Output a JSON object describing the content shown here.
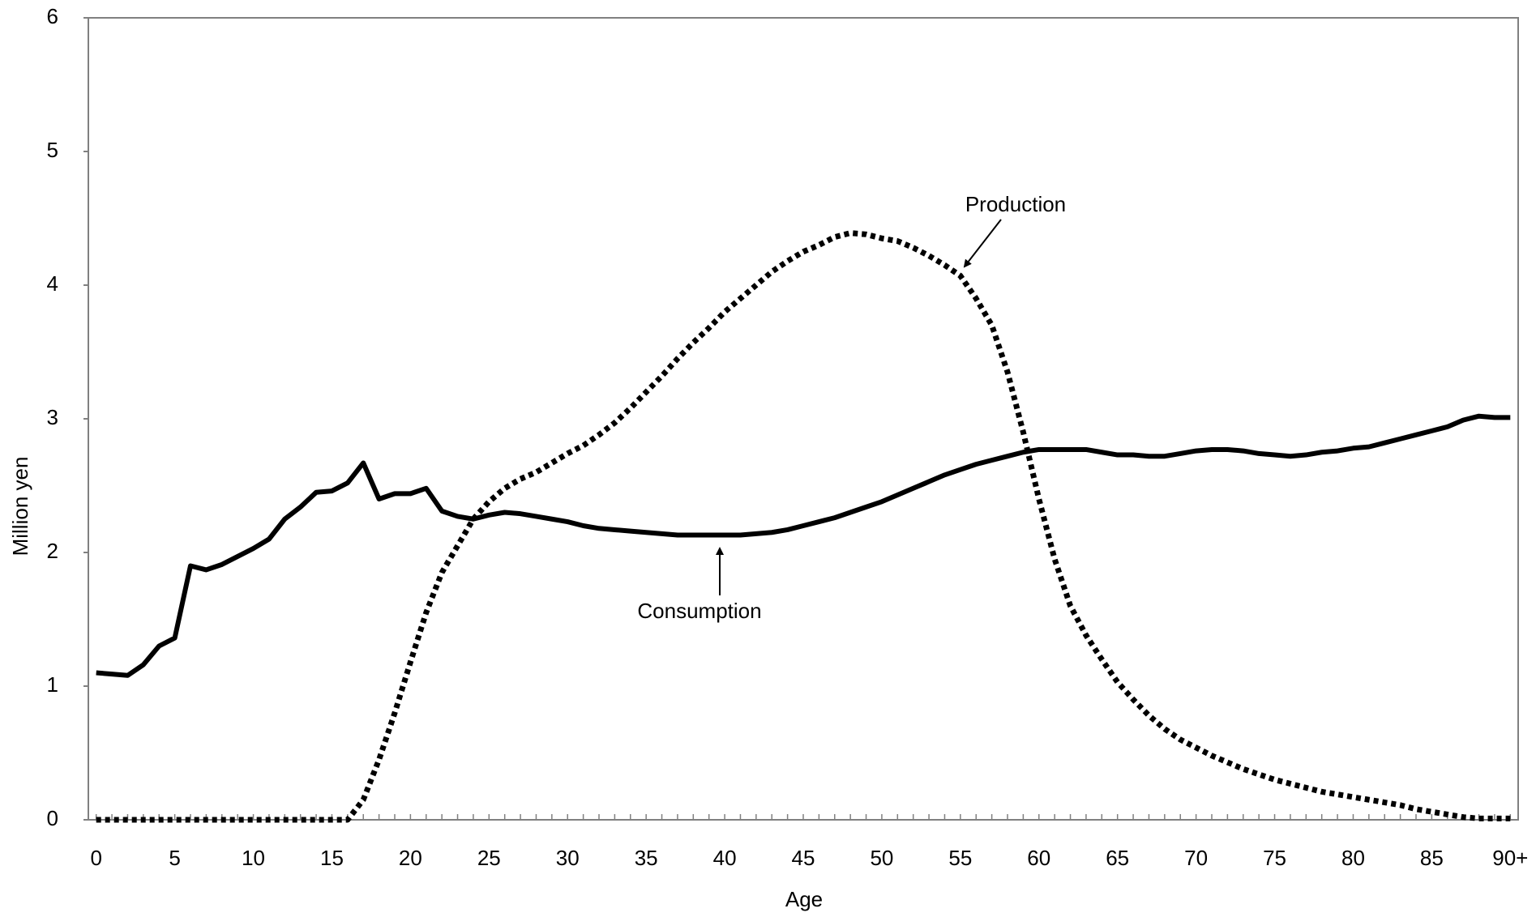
{
  "chart_data": {
    "type": "line",
    "x_label": "Age",
    "y_label": "Million yen",
    "x": [
      0,
      1,
      2,
      3,
      4,
      5,
      6,
      7,
      8,
      9,
      10,
      11,
      12,
      13,
      14,
      15,
      16,
      17,
      18,
      19,
      20,
      21,
      22,
      23,
      24,
      25,
      26,
      27,
      28,
      29,
      30,
      31,
      32,
      33,
      34,
      35,
      36,
      37,
      38,
      39,
      40,
      41,
      42,
      43,
      44,
      45,
      46,
      47,
      48,
      49,
      50,
      51,
      52,
      53,
      54,
      55,
      56,
      57,
      58,
      59,
      60,
      61,
      62,
      63,
      64,
      65,
      66,
      67,
      68,
      69,
      70,
      71,
      72,
      73,
      74,
      75,
      76,
      77,
      78,
      79,
      80,
      81,
      82,
      83,
      84,
      85,
      86,
      87,
      88,
      89,
      90
    ],
    "series": [
      {
        "name": "Consumption",
        "color": "#000000",
        "dash": false,
        "values": [
          1.1,
          1.09,
          1.08,
          1.16,
          1.3,
          1.36,
          1.9,
          1.87,
          1.91,
          1.97,
          2.03,
          2.1,
          2.25,
          2.34,
          2.45,
          2.46,
          2.52,
          2.67,
          2.4,
          2.44,
          2.44,
          2.48,
          2.31,
          2.27,
          2.25,
          2.28,
          2.3,
          2.29,
          2.27,
          2.25,
          2.23,
          2.2,
          2.18,
          2.17,
          2.16,
          2.15,
          2.14,
          2.13,
          2.13,
          2.13,
          2.13,
          2.13,
          2.14,
          2.15,
          2.17,
          2.2,
          2.23,
          2.26,
          2.3,
          2.34,
          2.38,
          2.43,
          2.48,
          2.53,
          2.58,
          2.62,
          2.66,
          2.69,
          2.72,
          2.75,
          2.77,
          2.77,
          2.77,
          2.77,
          2.75,
          2.73,
          2.73,
          2.72,
          2.72,
          2.74,
          2.76,
          2.77,
          2.77,
          2.76,
          2.74,
          2.73,
          2.72,
          2.73,
          2.75,
          2.76,
          2.78,
          2.79,
          2.82,
          2.85,
          2.88,
          2.91,
          2.94,
          2.99,
          3.02,
          3.01,
          3.01
        ]
      },
      {
        "name": "Production",
        "color": "#000000",
        "dash": true,
        "values": [
          0,
          0,
          0,
          0,
          0,
          0,
          0,
          0,
          0,
          0,
          0,
          0,
          0,
          0,
          0,
          0,
          0,
          0.15,
          0.45,
          0.8,
          1.18,
          1.55,
          1.85,
          2.05,
          2.25,
          2.38,
          2.48,
          2.55,
          2.6,
          2.67,
          2.74,
          2.8,
          2.88,
          2.97,
          3.08,
          3.2,
          3.32,
          3.45,
          3.57,
          3.68,
          3.8,
          3.9,
          4.0,
          4.1,
          4.18,
          4.25,
          4.3,
          4.36,
          4.39,
          4.38,
          4.35,
          4.33,
          4.28,
          4.22,
          4.15,
          4.07,
          3.9,
          3.7,
          3.35,
          2.9,
          2.4,
          1.95,
          1.6,
          1.38,
          1.2,
          1.03,
          0.9,
          0.78,
          0.68,
          0.6,
          0.54,
          0.48,
          0.43,
          0.38,
          0.34,
          0.3,
          0.27,
          0.24,
          0.21,
          0.19,
          0.17,
          0.15,
          0.13,
          0.11,
          0.08,
          0.06,
          0.04,
          0.02,
          0.01,
          0.01,
          0.01
        ]
      }
    ],
    "xlim": [
      -0.5,
      90.5
    ],
    "xticks": [
      0,
      5,
      10,
      15,
      20,
      25,
      30,
      35,
      40,
      45,
      50,
      55,
      60,
      65,
      70,
      75,
      80,
      85,
      {
        "value": 90,
        "label": "90+"
      }
    ],
    "ylim": [
      0,
      6
    ],
    "yticks": [
      0,
      1,
      2,
      3,
      4,
      5,
      6
    ],
    "grid": false
  }
}
